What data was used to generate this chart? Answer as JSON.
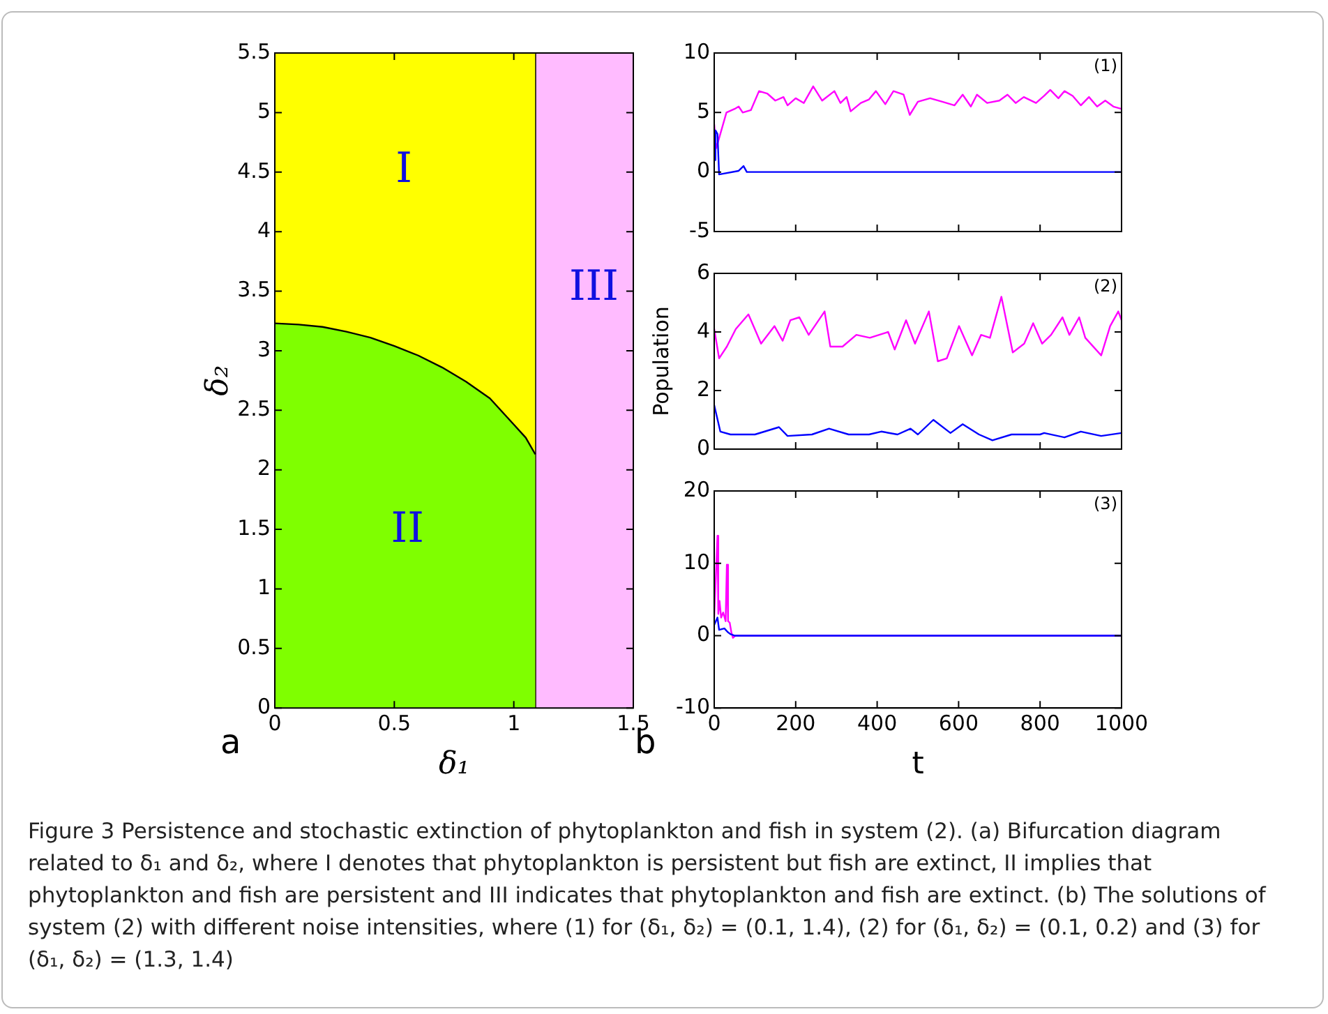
{
  "chart_data": [
    {
      "type": "area",
      "xlabel": "δ₁",
      "ylabel": "δ₂",
      "x": [
        0,
        0.1,
        0.2,
        0.3,
        0.4,
        0.5,
        0.6,
        0.7,
        0.8,
        0.9,
        1.0,
        1.05,
        1.09
      ],
      "series": [
        {
          "color": "#ffff00",
          "values": [
            5.5,
            5.5,
            5.5,
            5.5,
            5.5,
            5.5,
            5.5,
            5.5,
            5.5,
            5.5,
            5.5,
            5.5,
            5.5
          ]
        },
        {
          "color": "#7fff00",
          "values": [
            3.23,
            3.22,
            3.2,
            3.16,
            3.11,
            3.04,
            2.96,
            2.86,
            2.74,
            2.6,
            2.38,
            2.27,
            2.13
          ]
        }
      ],
      "bands": [
        {
          "axis": "x",
          "from": 1.09,
          "to": 1.5,
          "color": "#ffbbff"
        }
      ],
      "ref_lines": [
        {
          "axis": "x",
          "value": 1.09,
          "color": "#000000"
        }
      ],
      "xlim": [
        0,
        1.5
      ],
      "xticks": [
        0,
        0.5,
        1,
        1.5
      ],
      "ylim": [
        0,
        5.5
      ],
      "yticks": [
        0,
        0.5,
        1,
        1.5,
        2,
        2.5,
        3,
        3.5,
        4,
        4.5,
        5,
        5.5
      ],
      "grid": false,
      "legend": false,
      "annotations": [
        "I",
        "II",
        "III",
        "a",
        "Figure 3  Persistence and stochastic extinction of phytoplankton and fish in system (2). (a) Bifurcation diagram related to δ₁ and δ₂, where I denotes that phytoplankton is persistent but fish are extinct, II implies that phytoplankton and fish are persistent and III indicates that phytoplankton and fish are extinct. (b) The solutions of system (2) with different noise intensities, where (1) for (δ₁, δ₂) = (0.1, 1.4), (2) for (δ₁, δ₂) = (0.1, 0.2) and (3) for (δ₁, δ₂) = (1.3, 1.4)"
      ]
    },
    {
      "type": "line",
      "series": [
        {
          "color": "#ff00ff",
          "x": [
            0,
            5,
            30,
            50,
            60,
            70,
            90,
            110,
            130,
            150,
            170,
            180,
            200,
            220,
            243,
            265,
            295,
            310,
            325,
            335,
            360,
            380,
            397,
            420,
            440,
            465,
            480,
            500,
            530,
            560,
            590,
            610,
            630,
            645,
            670,
            700,
            720,
            740,
            760,
            790,
            810,
            825,
            845,
            860,
            880,
            900,
            920,
            940,
            960,
            980,
            1000
          ],
          "values": [
            4,
            2,
            5,
            5.3,
            5.5,
            5,
            5.2,
            6.8,
            6.6,
            6,
            6.3,
            5.6,
            6.2,
            5.8,
            7.2,
            6,
            6.8,
            5.8,
            6.3,
            5.1,
            5.8,
            6.1,
            6.8,
            5.7,
            6.8,
            6.5,
            4.8,
            5.9,
            6.2,
            5.9,
            5.6,
            6.5,
            5.5,
            6.5,
            5.8,
            6,
            6.5,
            5.8,
            6.3,
            5.8,
            6.4,
            6.9,
            6.2,
            6.8,
            6.4,
            5.6,
            6.3,
            5.5,
            6,
            5.5,
            5.3
          ]
        },
        {
          "color": "#0000ff",
          "x": [
            0,
            3,
            8,
            12,
            60,
            72,
            80,
            1000
          ],
          "values": [
            1,
            3.5,
            3.2,
            -0.2,
            0.1,
            0.5,
            0,
            0
          ]
        }
      ],
      "xlim": [
        0,
        1000
      ],
      "xticks": [
        0,
        200,
        400,
        600,
        800,
        1000
      ],
      "ylim": [
        -5,
        10
      ],
      "yticks": [
        -5,
        0,
        5,
        10
      ],
      "tick_labels": "y",
      "grid": false,
      "legend": false,
      "annotations": [
        "(1)"
      ]
    },
    {
      "type": "line",
      "ylabel": "Population",
      "series": [
        {
          "color": "#ff00ff",
          "x": [
            0,
            3,
            12,
            31,
            53,
            84,
            115,
            148,
            168,
            187,
            209,
            232,
            271,
            285,
            315,
            349,
            382,
            427,
            443,
            471,
            493,
            527,
            549,
            571,
            601,
            633,
            655,
            677,
            705,
            733,
            761,
            783,
            805,
            827,
            855,
            872,
            896,
            911,
            950,
            972,
            992,
            1000
          ],
          "values": [
            4.1,
            4.1,
            3.1,
            3.5,
            4.1,
            4.6,
            3.6,
            4.2,
            3.7,
            4.4,
            4.5,
            3.9,
            4.7,
            3.5,
            3.5,
            3.9,
            3.8,
            4,
            3.4,
            4.4,
            3.6,
            4.7,
            3,
            3.1,
            4.2,
            3.2,
            3.9,
            3.8,
            5.2,
            3.3,
            3.6,
            4.3,
            3.6,
            3.9,
            4.5,
            3.9,
            4.5,
            3.8,
            3.2,
            4.2,
            4.7,
            4.4
          ]
        },
        {
          "color": "#0000ff",
          "x": [
            0,
            15,
            40,
            100,
            159,
            180,
            240,
            282,
            330,
            380,
            410,
            450,
            482,
            500,
            538,
            580,
            610,
            650,
            683,
            730,
            800,
            810,
            860,
            900,
            950,
            1000
          ],
          "values": [
            1.5,
            0.6,
            0.5,
            0.5,
            0.75,
            0.45,
            0.5,
            0.7,
            0.5,
            0.5,
            0.6,
            0.5,
            0.7,
            0.5,
            1,
            0.55,
            0.85,
            0.5,
            0.3,
            0.5,
            0.5,
            0.55,
            0.4,
            0.6,
            0.45,
            0.55
          ]
        }
      ],
      "xlim": [
        0,
        1000
      ],
      "xticks": [
        0,
        200,
        400,
        600,
        800,
        1000
      ],
      "ylim": [
        0,
        6
      ],
      "yticks": [
        0,
        2,
        4,
        6
      ],
      "tick_labels": "y",
      "grid": false,
      "legend": false,
      "annotations": [
        "(2)"
      ]
    },
    {
      "type": "line",
      "xlabel": "t",
      "series": [
        {
          "color": "#ff00ff",
          "x": [
            0,
            8,
            10,
            13,
            17,
            22,
            28,
            31,
            34,
            38,
            42,
            46,
            52,
            1000
          ],
          "values": [
            2.5,
            13.8,
            3,
            4.8,
            2.5,
            3.2,
            2,
            9.8,
            2,
            1.8,
            0.5,
            -0.3,
            0,
            0
          ]
        },
        {
          "color": "#0000ff",
          "x": [
            0,
            8,
            12,
            25,
            33,
            40,
            50,
            1000
          ],
          "values": [
            1.5,
            2.5,
            0.8,
            1,
            0.5,
            0.2,
            0,
            0
          ]
        }
      ],
      "xlim": [
        0,
        1000
      ],
      "xticks": [
        0,
        200,
        400,
        600,
        800,
        1000
      ],
      "ylim": [
        -10,
        20
      ],
      "yticks": [
        -10,
        0,
        10,
        20
      ],
      "grid": false,
      "legend": false,
      "annotations": [
        "(3)",
        "b"
      ]
    }
  ]
}
